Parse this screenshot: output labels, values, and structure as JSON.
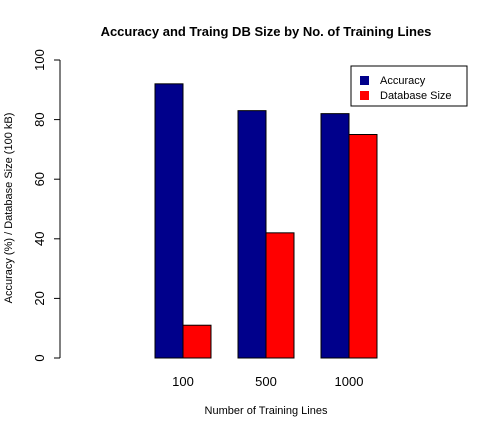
{
  "chart_data": {
    "type": "bar",
    "title": "Accuracy and Traing DB Size by No. of Training Lines",
    "xlabel": "Number of Training Lines",
    "ylabel": "Accuracy (%) / Database Size (100 kB)",
    "categories": [
      "100",
      "500",
      "1000"
    ],
    "series": [
      {
        "name": "Accuracy",
        "values": [
          92,
          83,
          82
        ],
        "color": "#00008b"
      },
      {
        "name": "Database Size",
        "values": [
          11,
          42,
          75
        ],
        "color": "#ff0000"
      }
    ],
    "ylim": [
      0,
      100
    ],
    "yticks": [
      "0",
      "20",
      "40",
      "60",
      "80",
      "100"
    ],
    "grid": false,
    "legend_position": "top-right"
  }
}
